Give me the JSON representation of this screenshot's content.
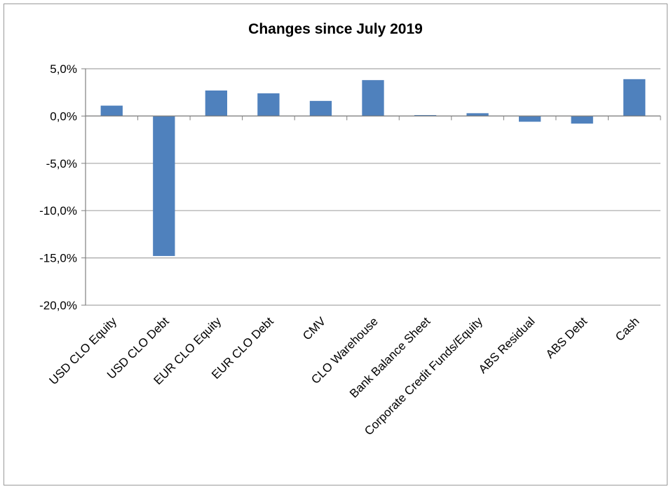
{
  "chart_data": {
    "type": "bar",
    "title": "Changes since July 2019",
    "xlabel": "",
    "ylabel": "",
    "categories": [
      "USD CLO Equity",
      "USD CLO Debt",
      "EUR CLO Equity",
      "EUR CLO Debt",
      "CMV",
      "CLO Warehouse",
      "Bank Balance Sheet",
      "Corporate Credit Funds/Equity",
      "ABS Residual",
      "ABS Debt",
      "Cash"
    ],
    "values": [
      1.1,
      -14.8,
      2.7,
      2.4,
      1.6,
      3.8,
      0.1,
      0.3,
      -0.6,
      -0.8,
      3.9
    ],
    "ylim": [
      -20,
      5
    ],
    "y_ticks": [
      5,
      0,
      -5,
      -10,
      -15,
      -20
    ],
    "y_tick_labels": [
      "5,0%",
      "0,0%",
      "-5,0%",
      "-10,0%",
      "-15,0%",
      "-20,0%"
    ],
    "grid": true,
    "bar_color": "#4f81bd",
    "grid_color": "#a6a6a6"
  }
}
